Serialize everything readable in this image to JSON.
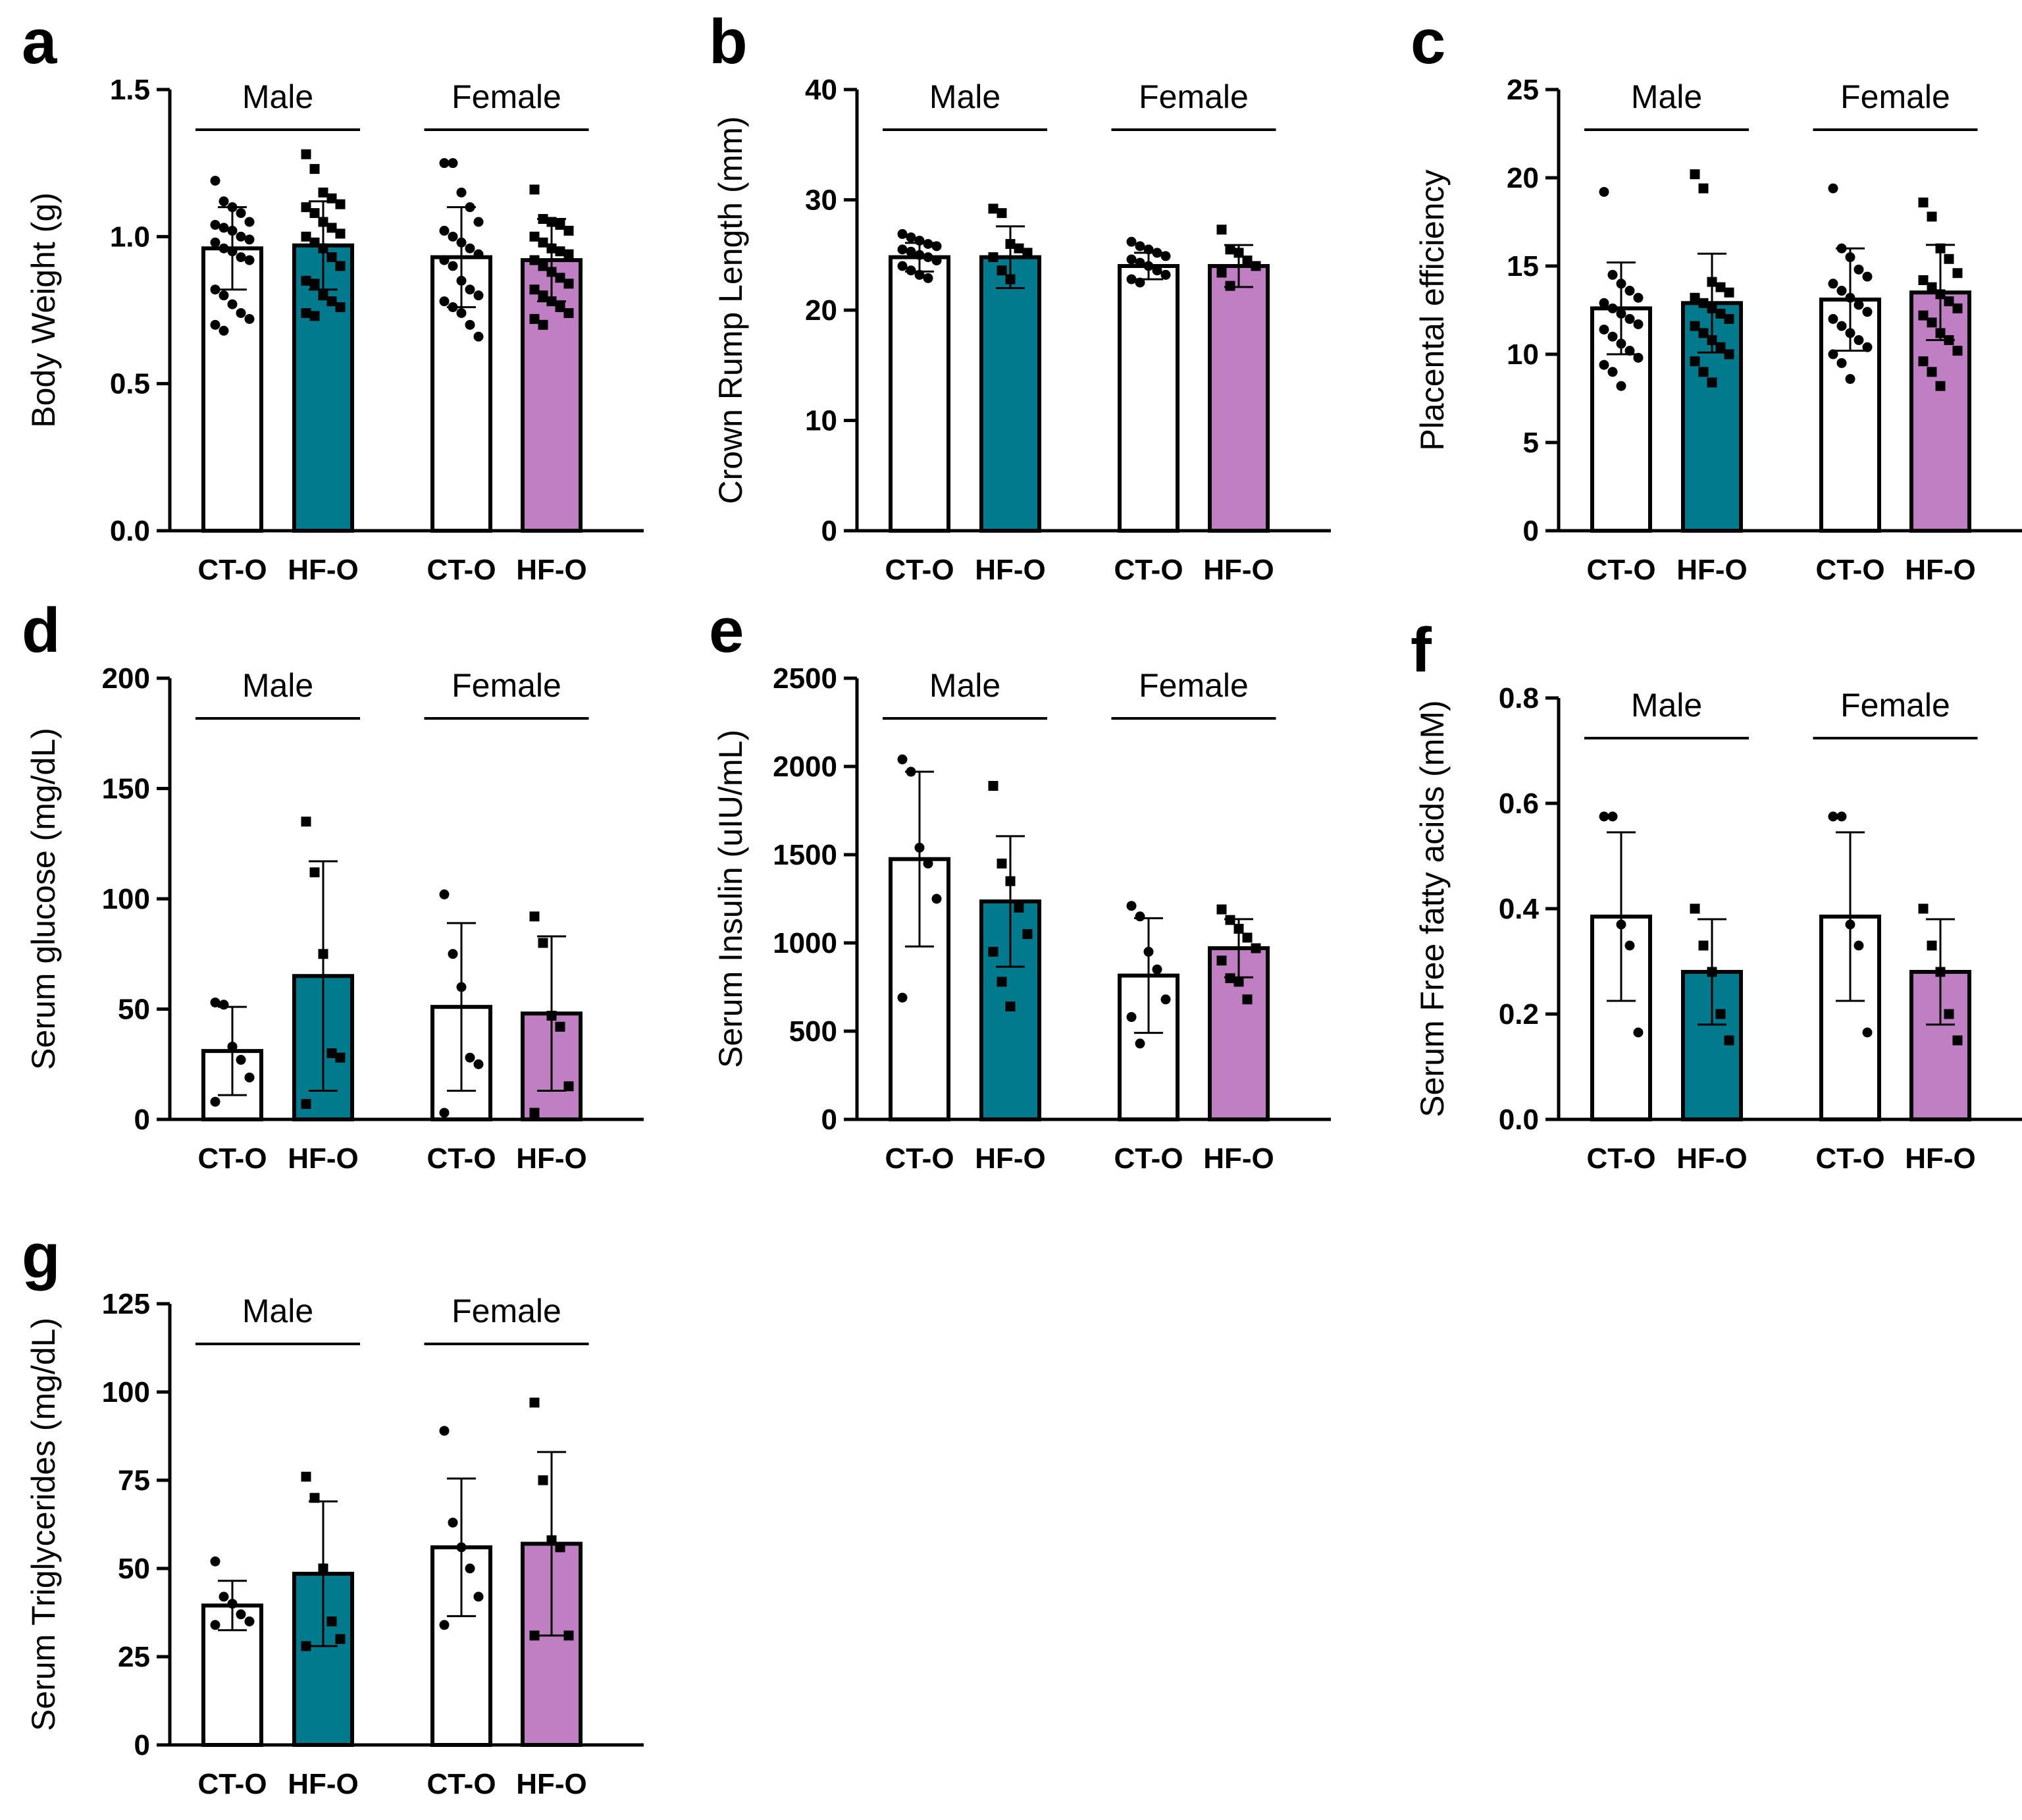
{
  "colors": {
    "control": "#ffffff",
    "male_hf": "#007a8c",
    "female_hf": "#c17fc3",
    "ink": "#000000"
  },
  "chart_data": [
    {
      "panel": "a",
      "type": "bar",
      "ylabel": "Body Weight (g)",
      "ylim": [
        0,
        1.5
      ],
      "yticks": [
        0,
        0.5,
        1.0,
        1.5
      ],
      "ytick_labels": [
        "0.0",
        "0.5",
        "1.0",
        "1.5"
      ],
      "groups": [
        "Male",
        "Female"
      ],
      "categories": [
        "CT-O",
        "HF-O",
        "CT-O",
        "HF-O"
      ],
      "values": [
        0.96,
        0.97,
        0.93,
        0.92
      ],
      "errors": [
        0.14,
        0.15,
        0.17,
        0.14
      ],
      "points": [
        [
          1.19,
          1.12,
          1.1,
          1.08,
          1.05,
          1.04,
          1.03,
          1.02,
          1.0,
          0.99,
          0.98,
          0.96,
          0.95,
          0.93,
          0.92,
          0.82,
          0.8,
          0.77,
          0.74,
          0.72,
          0.7,
          0.68
        ],
        [
          1.28,
          1.23,
          1.15,
          1.13,
          1.11,
          1.1,
          1.08,
          1.05,
          1.03,
          1.01,
          1.0,
          0.98,
          0.96,
          0.93,
          0.9,
          0.85,
          0.84,
          0.8,
          0.78,
          0.76,
          0.74,
          0.73
        ],
        [
          1.25,
          1.25,
          1.15,
          1.1,
          1.05,
          1.02,
          1.0,
          0.98,
          0.96,
          0.94,
          0.92,
          0.9,
          0.85,
          0.82,
          0.8,
          0.78,
          0.76,
          0.74,
          0.7,
          0.66
        ],
        [
          1.16,
          1.06,
          1.05,
          1.04,
          1.02,
          1.0,
          0.98,
          0.96,
          0.95,
          0.94,
          0.92,
          0.9,
          0.88,
          0.86,
          0.84,
          0.82,
          0.8,
          0.78,
          0.76,
          0.74,
          0.72,
          0.7
        ]
      ]
    },
    {
      "panel": "b",
      "type": "bar",
      "ylabel": "Crown Rump Length (mm)",
      "ylim": [
        0,
        40
      ],
      "yticks": [
        0,
        10,
        20,
        30,
        40
      ],
      "ytick_labels": [
        "0",
        "10",
        "20",
        "30",
        "40"
      ],
      "groups": [
        "Male",
        "Female"
      ],
      "categories": [
        "CT-O",
        "HF-O",
        "CT-O",
        "HF-O"
      ],
      "values": [
        24.8,
        24.8,
        24.0,
        24.0
      ],
      "errors": [
        1.3,
        2.8,
        1.2,
        1.9
      ],
      "points": [
        [
          26.9,
          26.6,
          26.3,
          26.0,
          25.8,
          25.5,
          25.3,
          25.0,
          24.8,
          24.5,
          24.0,
          23.6,
          23.2,
          22.9
        ],
        [
          29.2,
          28.8,
          26.0,
          25.6,
          25.2,
          24.8,
          23.6,
          22.8
        ],
        [
          26.2,
          25.8,
          25.5,
          25.2,
          24.9,
          24.6,
          24.3,
          24.0,
          23.6,
          23.2,
          22.8,
          22.5
        ],
        [
          27.3,
          25.5,
          25.2,
          24.5,
          24.0,
          23.4,
          22.2
        ]
      ]
    },
    {
      "panel": "c",
      "type": "bar",
      "ylabel": "Placental efficiency",
      "ylim": [
        0,
        25
      ],
      "yticks": [
        0,
        5,
        10,
        15,
        20,
        25
      ],
      "ytick_labels": [
        "0",
        "5",
        "10",
        "15",
        "20",
        "25"
      ],
      "groups": [
        "Male",
        "Female"
      ],
      "categories": [
        "CT-O",
        "HF-O",
        "CT-O",
        "HF-O"
      ],
      "values": [
        12.6,
        12.9,
        13.1,
        13.5
      ],
      "errors": [
        2.6,
        2.8,
        2.9,
        2.7
      ],
      "points": [
        [
          19.2,
          14.5,
          14.0,
          13.6,
          13.2,
          12.9,
          12.6,
          12.3,
          12.0,
          11.7,
          11.4,
          11.0,
          10.6,
          10.2,
          9.8,
          9.4,
          9.0,
          8.2
        ],
        [
          20.2,
          19.4,
          14.1,
          13.8,
          13.5,
          13.2,
          12.9,
          12.6,
          12.3,
          12.0,
          11.6,
          11.2,
          10.8,
          10.4,
          10.0,
          9.6,
          9.0,
          8.4
        ],
        [
          19.4,
          16.0,
          15.5,
          14.8,
          14.4,
          14.0,
          13.6,
          13.2,
          12.8,
          12.4,
          12.0,
          11.6,
          11.2,
          10.8,
          10.4,
          10.0,
          9.5,
          8.6
        ],
        [
          18.6,
          17.8,
          16.0,
          15.4,
          14.6,
          14.2,
          13.8,
          13.4,
          13.0,
          12.6,
          12.2,
          11.8,
          11.2,
          10.8,
          10.2,
          9.6,
          9.0,
          8.2
        ]
      ]
    },
    {
      "panel": "d",
      "type": "bar",
      "ylabel": "Serum glucose (mg/dL)",
      "ylim": [
        0,
        200
      ],
      "yticks": [
        0,
        50,
        100,
        150,
        200
      ],
      "ytick_labels": [
        "0",
        "50",
        "100",
        "150",
        "200"
      ],
      "groups": [
        "Male",
        "Female"
      ],
      "categories": [
        "CT-O",
        "HF-O",
        "CT-O",
        "HF-O"
      ],
      "values": [
        31,
        65,
        51,
        48
      ],
      "errors": [
        20,
        52,
        38,
        35
      ],
      "points": [
        [
          53,
          52,
          33,
          27,
          19,
          8
        ],
        [
          135,
          112,
          75,
          30,
          28,
          7
        ],
        [
          102,
          75,
          60,
          28,
          25,
          3
        ],
        [
          92,
          80,
          47,
          42,
          15,
          3
        ]
      ]
    },
    {
      "panel": "e",
      "type": "bar",
      "ylabel": "Serum Insulin (uIU/mL)",
      "ylim": [
        0,
        2500
      ],
      "yticks": [
        0,
        500,
        1000,
        1500,
        2000,
        2500
      ],
      "ytick_labels": [
        "0",
        "500",
        "1000",
        "1500",
        "2000",
        "2500"
      ],
      "groups": [
        "Male",
        "Female"
      ],
      "categories": [
        "CT-O",
        "HF-O",
        "CT-O",
        "HF-O"
      ],
      "values": [
        1475,
        1235,
        815,
        970
      ],
      "errors": [
        495,
        370,
        325,
        165
      ],
      "points": [
        [
          2040,
          1970,
          1540,
          1450,
          1250,
          690
        ],
        [
          1890,
          1450,
          1350,
          1200,
          1050,
          950,
          780,
          640
        ],
        [
          1210,
          1150,
          950,
          850,
          680,
          580,
          430
        ],
        [
          1190,
          1130,
          1080,
          1030,
          970,
          900,
          800,
          780,
          680
        ]
      ]
    },
    {
      "panel": "f",
      "type": "bar",
      "ylabel": "Serum Free fatty acids (mM)",
      "ylim": [
        0,
        0.8
      ],
      "yticks": [
        0,
        0.2,
        0.4,
        0.6,
        0.8
      ],
      "ytick_labels": [
        "0.0",
        "0.2",
        "0.4",
        "0.6",
        "0.8"
      ],
      "groups": [
        "Male",
        "Female"
      ],
      "categories": [
        "CT-O",
        "HF-O",
        "CT-O",
        "HF-O"
      ],
      "values": [
        0.385,
        0.28,
        0.385,
        0.28
      ],
      "errors": [
        0.16,
        0.1,
        0.16,
        0.1
      ],
      "points": [
        [
          0.575,
          0.575,
          0.37,
          0.33,
          0.165
        ],
        [
          0.4,
          0.33,
          0.28,
          0.2,
          0.15
        ],
        [
          0.575,
          0.575,
          0.37,
          0.33,
          0.165
        ],
        [
          0.4,
          0.33,
          0.28,
          0.2,
          0.15
        ]
      ]
    },
    {
      "panel": "g",
      "type": "bar",
      "ylabel": "Serum Triglycerides (mg/dL)",
      "ylim": [
        0,
        125
      ],
      "yticks": [
        0,
        25,
        50,
        75,
        100,
        125
      ],
      "ytick_labels": [
        "0",
        "25",
        "50",
        "75",
        "100",
        "125"
      ],
      "groups": [
        "Male",
        "Female"
      ],
      "categories": [
        "CT-O",
        "HF-O",
        "CT-O",
        "HF-O"
      ],
      "values": [
        39.5,
        48.5,
        56,
        57
      ],
      "errors": [
        7,
        20.5,
        19.5,
        26
      ],
      "points": [
        [
          52,
          42,
          40,
          37,
          35,
          34
        ],
        [
          76,
          70,
          50,
          35,
          30,
          28
        ],
        [
          89,
          63,
          56,
          50,
          42,
          34
        ],
        [
          97,
          75,
          58,
          56,
          31,
          31
        ]
      ]
    }
  ]
}
